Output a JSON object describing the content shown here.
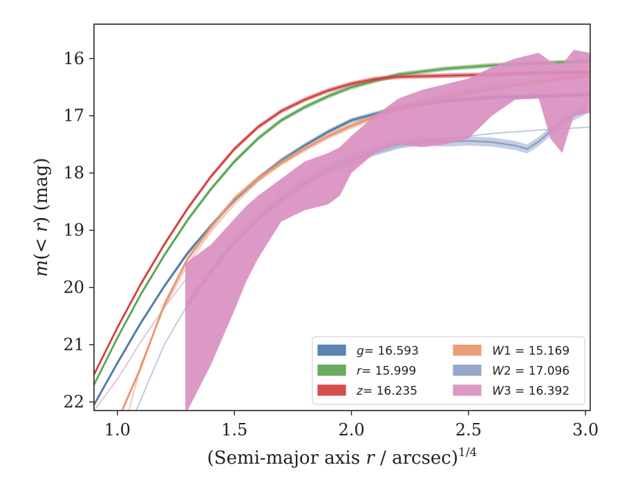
{
  "chart_data": {
    "type": "line",
    "xlabel": "(Semi-major axis r / arcsec)^1/4",
    "xlabel_main": "(Semi-major axis ",
    "xlabel_var": "r",
    "xlabel_rest": " / arcsec)",
    "xlabel_sup": "1/4",
    "ylabel": "m(< r) (mag)",
    "ylabel_var": "m",
    "ylabel_lt": "(< ",
    "ylabel_r": "r",
    "ylabel_rest": ") (mag)",
    "xlim": [
      0.9,
      3.02
    ],
    "ylim": [
      22.15,
      15.4
    ],
    "y_inverted": true,
    "xticks": [
      1.0,
      1.5,
      2.0,
      2.5,
      3.0
    ],
    "xtick_labels": [
      "1.0",
      "1.5",
      "2.0",
      "2.5",
      "3.0"
    ],
    "yticks": [
      16,
      17,
      18,
      19,
      20,
      21,
      22
    ],
    "ytick_labels": [
      "16",
      "17",
      "18",
      "19",
      "20",
      "21",
      "22"
    ],
    "legend_position": "lower-right",
    "series": [
      {
        "name": "g = 16.593",
        "label_var": "g",
        "label_value": "= 16.593",
        "color": "#4c78a8",
        "x": [
          0.9,
          1.0,
          1.1,
          1.2,
          1.3,
          1.4,
          1.5,
          1.6,
          1.7,
          1.8,
          1.9,
          2.0,
          2.2,
          2.4,
          2.6,
          2.8,
          3.02
        ],
        "y": [
          22.05,
          21.32,
          20.62,
          19.98,
          19.4,
          18.92,
          18.48,
          18.1,
          17.78,
          17.52,
          17.28,
          17.08,
          16.86,
          16.74,
          16.68,
          16.66,
          16.63
        ],
        "band": 0.04
      },
      {
        "name": "r = 15.999",
        "label_var": "r",
        "label_value": "= 15.999",
        "color": "#59a14f",
        "x": [
          0.9,
          1.0,
          1.1,
          1.2,
          1.3,
          1.4,
          1.5,
          1.6,
          1.7,
          1.8,
          1.9,
          2.0,
          2.2,
          2.4,
          2.6,
          2.8,
          3.02
        ],
        "y": [
          21.7,
          20.88,
          20.12,
          19.44,
          18.82,
          18.28,
          17.8,
          17.4,
          17.08,
          16.85,
          16.66,
          16.5,
          16.28,
          16.18,
          16.12,
          16.08,
          16.05
        ],
        "band": 0.04
      },
      {
        "name": "z = 16.235",
        "label_var": "z",
        "label_value": "= 16.235",
        "color": "#d13c3c",
        "x": [
          0.9,
          1.0,
          1.1,
          1.2,
          1.3,
          1.4,
          1.5,
          1.6,
          1.7,
          1.8,
          1.9,
          2.0,
          2.1,
          2.2,
          2.4,
          2.6,
          2.8,
          3.02
        ],
        "y": [
          21.52,
          20.7,
          19.94,
          19.25,
          18.62,
          18.06,
          17.58,
          17.2,
          16.92,
          16.72,
          16.56,
          16.44,
          16.36,
          16.32,
          16.3,
          16.28,
          16.25,
          16.24
        ],
        "band": 0.04
      },
      {
        "name": "W1 = 15.169",
        "label_var": "W",
        "label_value": "1 = 15.169",
        "color": "#e8956c",
        "x": [
          1.02,
          1.1,
          1.2,
          1.3,
          1.4,
          1.5,
          1.6,
          1.7,
          1.8,
          1.9,
          2.0,
          2.1,
          2.2,
          2.4,
          2.6,
          2.8,
          3.02
        ],
        "y": [
          22.15,
          21.4,
          20.3,
          19.5,
          18.95,
          18.45,
          18.1,
          17.82,
          17.58,
          17.36,
          17.18,
          17.02,
          16.88,
          16.68,
          16.52,
          16.4,
          16.3
        ],
        "band": 0.05,
        "model_x": [
          1.05,
          1.1,
          1.2,
          1.3,
          1.4,
          1.5,
          1.6,
          1.7,
          1.8,
          1.9,
          2.0,
          2.2,
          2.4,
          2.6,
          2.8,
          3.02
        ],
        "model_y": [
          22.15,
          21.35,
          20.35,
          19.6,
          19.02,
          18.55,
          18.15,
          17.85,
          17.58,
          17.35,
          17.15,
          16.85,
          16.62,
          16.45,
          16.32,
          16.22
        ]
      },
      {
        "name": "W2 = 17.096",
        "label_var": "W",
        "label_value": "2 = 17.096",
        "color": "#8c9fc6",
        "x": [
          1.3,
          1.4,
          1.5,
          1.6,
          1.7,
          1.8,
          1.9,
          2.0,
          2.1,
          2.2,
          2.3,
          2.4,
          2.5,
          2.6,
          2.7,
          2.75,
          2.8,
          2.9,
          3.0
        ],
        "y": [
          20.3,
          19.72,
          19.2,
          18.8,
          18.45,
          18.18,
          17.95,
          17.78,
          17.62,
          17.5,
          17.44,
          17.46,
          17.44,
          17.46,
          17.52,
          17.58,
          17.45,
          17.1,
          16.9
        ],
        "band": 0.08,
        "model_x": [
          1.08,
          1.2,
          1.3,
          1.4,
          1.5,
          1.6,
          1.7,
          1.8,
          1.9,
          2.0,
          2.2,
          2.4,
          2.6,
          2.8,
          3.02
        ],
        "model_y": [
          22.15,
          21.0,
          20.3,
          19.72,
          19.22,
          18.82,
          18.48,
          18.2,
          17.96,
          17.78,
          17.54,
          17.4,
          17.31,
          17.25,
          17.2
        ]
      },
      {
        "name": "W3 = 16.392",
        "label_var": "W",
        "label_value": "3 = 16.392",
        "color": "#d98ec0",
        "x": [
          1.29,
          1.3,
          1.4,
          1.5,
          1.55,
          1.6,
          1.7,
          1.8,
          1.9,
          1.95,
          2.0,
          2.1,
          2.2,
          2.3,
          2.4,
          2.5,
          2.6,
          2.7,
          2.8,
          2.85,
          2.9,
          2.95,
          3.02
        ],
        "y_upper": [
          19.6,
          19.55,
          19.25,
          18.8,
          18.58,
          18.4,
          18.1,
          17.8,
          17.65,
          17.55,
          17.35,
          17.0,
          16.7,
          16.55,
          16.45,
          16.35,
          16.15,
          16.0,
          15.9,
          16.05,
          16.1,
          15.85,
          15.9
        ],
        "y_lower": [
          22.15,
          22.15,
          21.35,
          20.4,
          19.9,
          19.5,
          18.85,
          18.65,
          18.55,
          18.4,
          18.0,
          17.65,
          17.5,
          17.55,
          17.5,
          17.4,
          17.0,
          16.72,
          16.7,
          17.4,
          17.65,
          17.0,
          16.95
        ],
        "model_x": [
          0.9,
          1.0,
          1.1,
          1.2,
          1.3,
          1.4,
          1.5,
          1.6,
          1.7,
          1.8,
          1.9,
          2.0,
          2.2,
          2.4,
          2.6,
          2.8,
          3.02
        ],
        "model_y": [
          22.15,
          21.6,
          20.95,
          20.35,
          19.82,
          19.35,
          18.95,
          18.6,
          18.32,
          18.08,
          17.88,
          17.7,
          17.4,
          17.1,
          16.82,
          16.58,
          16.38
        ]
      }
    ]
  }
}
